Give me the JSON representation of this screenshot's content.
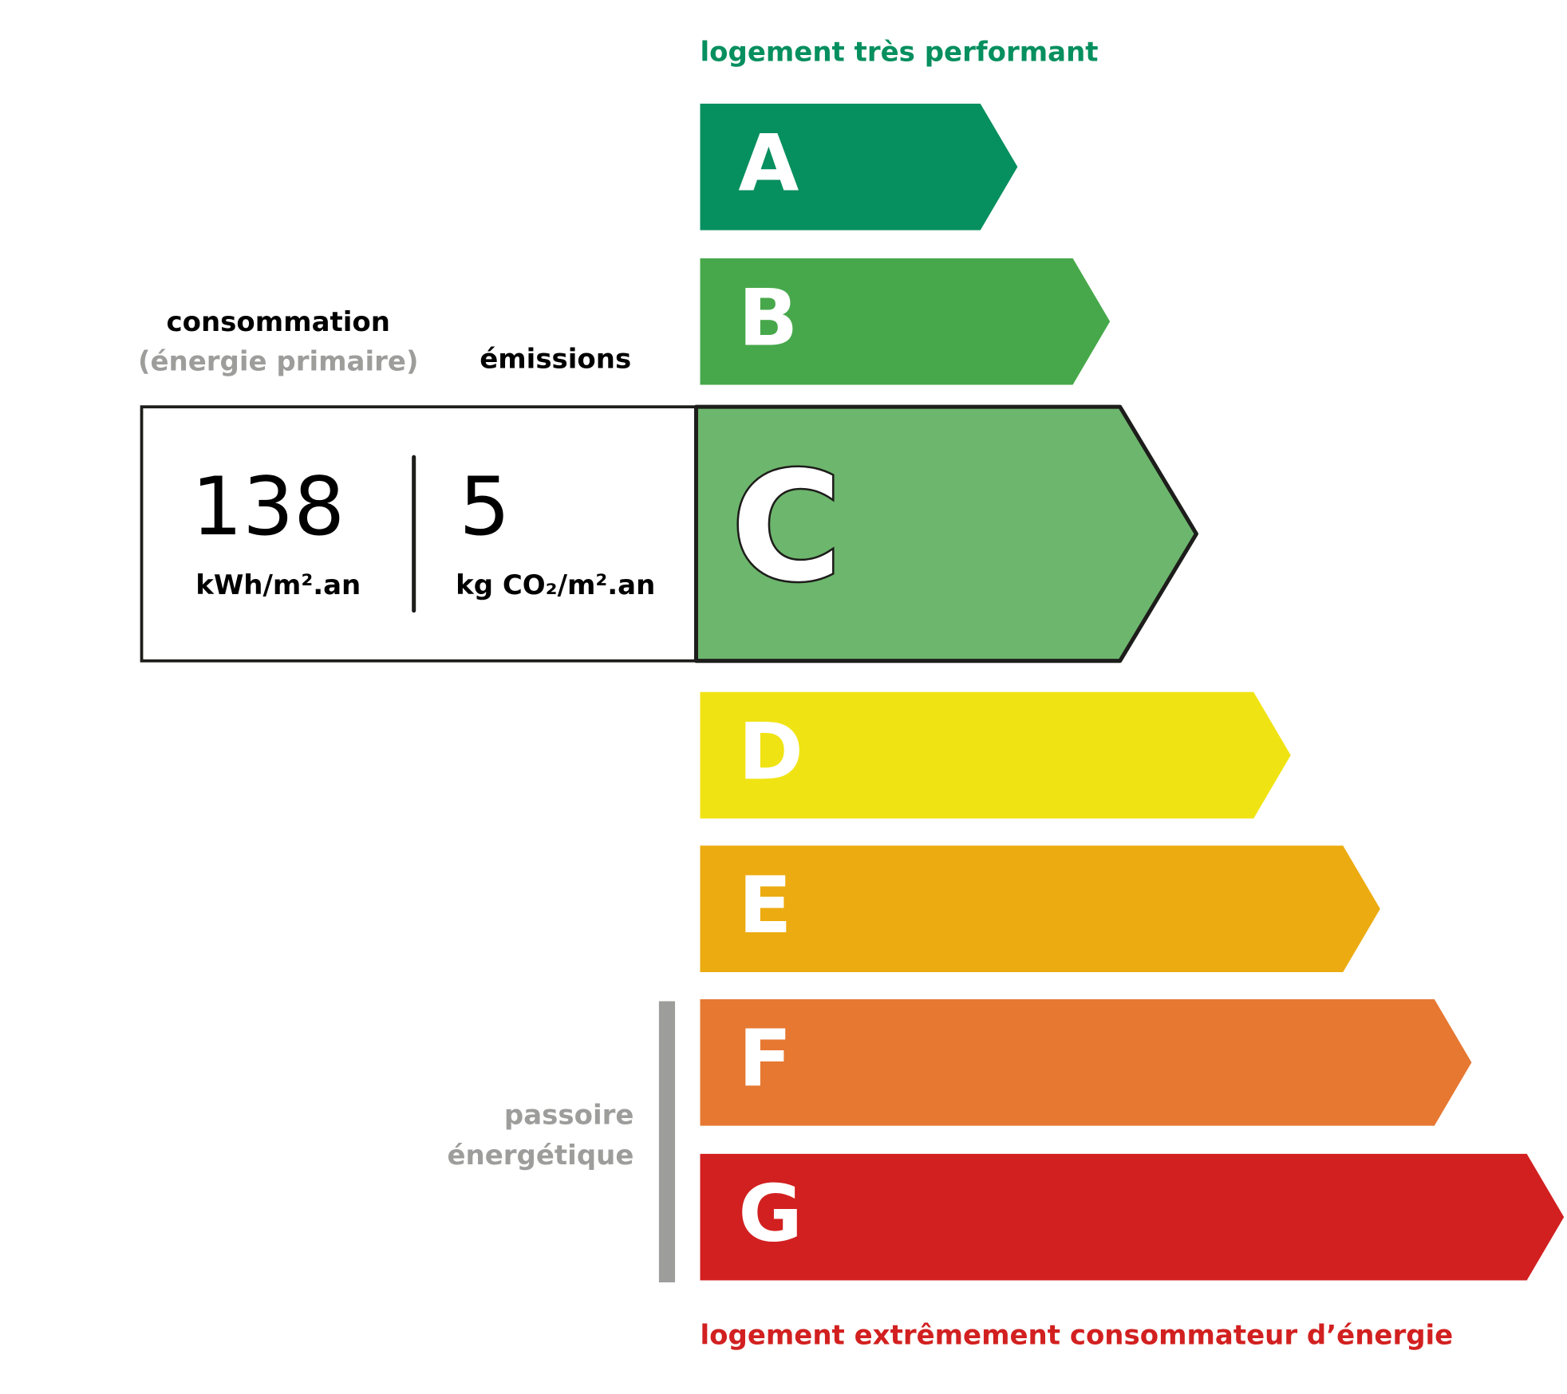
{
  "top_label": "logement très performant",
  "bottom_label": "logement extrêmement consommateur d’énergie",
  "consumption": {
    "header": "consommation",
    "subheader": "(énergie primaire)",
    "value": 138,
    "unit": "kWh/m².an"
  },
  "emissions": {
    "header": "émissions",
    "value": 5,
    "unit": "kg CO₂/m².an"
  },
  "rating": "C",
  "classes": [
    {
      "letter": "A",
      "color": "#068f5f"
    },
    {
      "letter": "B",
      "color": "#47a84b"
    },
    {
      "letter": "C",
      "color": "#6db66d"
    },
    {
      "letter": "D",
      "color": "#f0e314"
    },
    {
      "letter": "E",
      "color": "#ecab10"
    },
    {
      "letter": "F",
      "color": "#e67832"
    },
    {
      "letter": "G",
      "color": "#d22020"
    }
  ],
  "passoire": {
    "line1": "passoire",
    "line2": "énergétique"
  }
}
